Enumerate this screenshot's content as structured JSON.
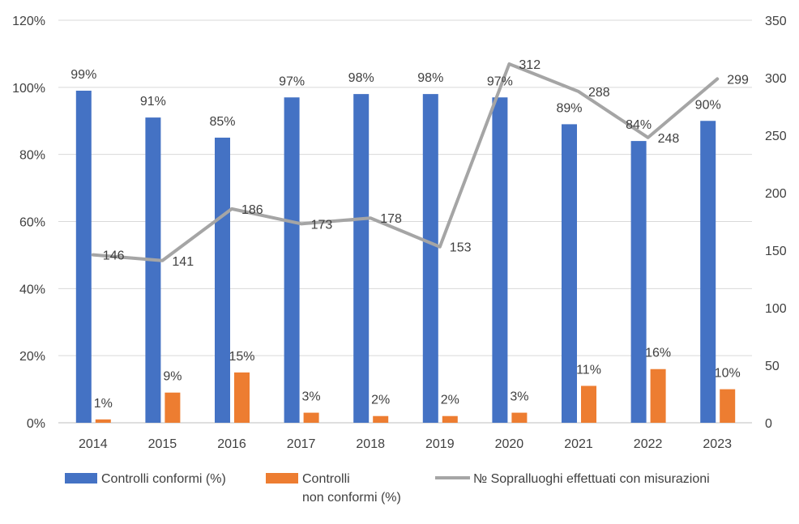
{
  "chart_data": {
    "type": "bar",
    "categories": [
      "2014",
      "2015",
      "2016",
      "2017",
      "2018",
      "2019",
      "2020",
      "2021",
      "2022",
      "2023"
    ],
    "series": [
      {
        "name": "Controlli conformi (%)",
        "type": "bar",
        "axis": "left",
        "color": "#4472C4",
        "values": [
          99,
          91,
          85,
          97,
          98,
          98,
          97,
          89,
          84,
          90
        ],
        "labels": [
          "99%",
          "91%",
          "85%",
          "97%",
          "98%",
          "98%",
          "97%",
          "89%",
          "84%",
          "90%"
        ]
      },
      {
        "name": "Controlli non conformi (%)",
        "legend_lines": [
          "Controlli",
          "non conformi (%)"
        ],
        "type": "bar",
        "axis": "left",
        "color": "#ED7D31",
        "values": [
          1,
          9,
          15,
          3,
          2,
          2,
          3,
          11,
          16,
          10
        ],
        "labels": [
          "1%",
          "9%",
          "15%",
          "3%",
          "2%",
          "2%",
          "3%",
          "11%",
          "16%",
          "10%"
        ]
      },
      {
        "name": "№ Sopralluoghi effettuati con misurazioni",
        "type": "line",
        "axis": "right",
        "color": "#A5A5A5",
        "values": [
          146,
          141,
          186,
          173,
          178,
          153,
          312,
          288,
          248,
          299
        ],
        "labels": [
          "146",
          "141",
          "186",
          "173",
          "178",
          "153",
          "312",
          "288",
          "248",
          "299"
        ]
      }
    ],
    "y_left": {
      "min": 0,
      "max": 120,
      "ticks": [
        "0%",
        "20%",
        "40%",
        "60%",
        "80%",
        "100%",
        "120%"
      ]
    },
    "y_right": {
      "min": 0,
      "max": 350,
      "ticks": [
        "0",
        "50",
        "100",
        "150",
        "200",
        "250",
        "300",
        "350"
      ]
    },
    "grid": true,
    "legend": "bottom",
    "title": "",
    "xlabel": "",
    "ylabel": ""
  }
}
